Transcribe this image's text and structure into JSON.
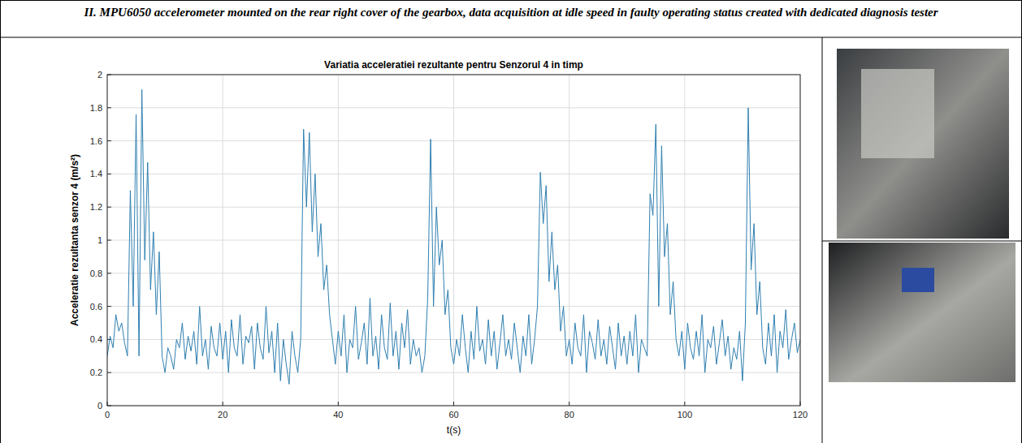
{
  "caption": "II. MPU6050 accelerometer mounted on the rear right cover of the gearbox, data acquisition at idle speed in faulty operating status created with dedicated diagnosis tester",
  "chart_data": {
    "type": "line",
    "title": "Variatia acceleratiei rezultante pentru Senzorul 4 in timp",
    "x_label": "t(s)",
    "y_label": "Acceleratie rezultanta senzor 4 (m/s²)",
    "color": "#2f7fb0",
    "grid": true,
    "xlim": [
      0,
      120
    ],
    "xticks": [
      0,
      20,
      40,
      60,
      80,
      100,
      120
    ],
    "ylim": [
      0,
      2
    ],
    "yticks": [
      0,
      0.2,
      0.4,
      0.6,
      0.8,
      1,
      1.2,
      1.4,
      1.6,
      1.8,
      2
    ],
    "x": [
      0,
      0.5,
      1,
      1.5,
      2,
      2.5,
      3,
      3.5,
      4,
      4.5,
      5,
      5.5,
      6,
      6.5,
      7,
      7.5,
      8,
      8.5,
      9,
      9.5,
      10,
      10.5,
      11,
      11.5,
      12,
      12.5,
      13,
      13.5,
      14,
      14.5,
      15,
      15.5,
      16,
      16.5,
      17,
      17.5,
      18,
      18.5,
      19,
      19.5,
      20,
      20.5,
      21,
      21.5,
      22,
      22.5,
      23,
      23.5,
      24,
      24.5,
      25,
      25.5,
      26,
      26.5,
      27,
      27.5,
      28,
      28.5,
      29,
      29.5,
      30,
      30.5,
      31,
      31.5,
      32,
      32.5,
      33,
      33.5,
      34,
      34.5,
      35,
      35.5,
      36,
      36.5,
      37,
      37.5,
      38,
      38.5,
      39,
      39.5,
      40,
      40.5,
      41,
      41.5,
      42,
      42.5,
      43,
      43.5,
      44,
      44.5,
      45,
      45.5,
      46,
      46.5,
      47,
      47.5,
      48,
      48.5,
      49,
      49.5,
      50,
      50.5,
      51,
      51.5,
      52,
      52.5,
      53,
      53.5,
      54,
      54.5,
      55,
      55.5,
      56,
      56.5,
      57,
      57.5,
      58,
      58.5,
      59,
      59.5,
      60,
      60.5,
      61,
      61.5,
      62,
      62.5,
      63,
      63.5,
      64,
      64.5,
      65,
      65.5,
      66,
      66.5,
      67,
      67.5,
      68,
      68.5,
      69,
      69.5,
      70,
      70.5,
      71,
      71.5,
      72,
      72.5,
      73,
      73.5,
      74,
      74.5,
      75,
      75.5,
      76,
      76.5,
      77,
      77.5,
      78,
      78.5,
      79,
      79.5,
      80,
      80.5,
      81,
      81.5,
      82,
      82.5,
      83,
      83.5,
      84,
      84.5,
      85,
      85.5,
      86,
      86.5,
      87,
      87.5,
      88,
      88.5,
      89,
      89.5,
      90,
      90.5,
      91,
      91.5,
      92,
      92.5,
      93,
      93.5,
      94,
      94.5,
      95,
      95.5,
      96,
      96.5,
      97,
      97.5,
      98,
      98.5,
      99,
      99.5,
      100,
      100.5,
      101,
      101.5,
      102,
      102.5,
      103,
      103.5,
      104,
      104.5,
      105,
      105.5,
      106,
      106.5,
      107,
      107.5,
      108,
      108.5,
      109,
      109.5,
      110,
      110.5,
      111,
      111.5,
      112,
      112.5,
      113,
      113.5,
      114,
      114.5,
      115,
      115.5,
      116,
      116.5,
      117,
      117.5,
      118,
      118.5,
      119,
      119.5,
      120
    ],
    "values": [
      0.3,
      0.42,
      0.35,
      0.55,
      0.45,
      0.5,
      0.38,
      0.3,
      1.3,
      0.6,
      1.76,
      0.3,
      1.91,
      0.88,
      1.47,
      0.7,
      1.05,
      0.55,
      0.93,
      0.3,
      0.2,
      0.35,
      0.3,
      0.22,
      0.4,
      0.35,
      0.5,
      0.28,
      0.42,
      0.33,
      0.45,
      0.25,
      0.6,
      0.3,
      0.4,
      0.22,
      0.48,
      0.35,
      0.3,
      0.5,
      0.28,
      0.45,
      0.2,
      0.52,
      0.35,
      0.3,
      0.55,
      0.25,
      0.42,
      0.38,
      0.48,
      0.22,
      0.5,
      0.35,
      0.28,
      0.6,
      0.32,
      0.45,
      0.2,
      0.5,
      0.15,
      0.4,
      0.25,
      0.13,
      0.45,
      0.3,
      0.2,
      0.4,
      1.67,
      1.2,
      1.65,
      1.05,
      1.4,
      0.9,
      1.1,
      0.7,
      0.85,
      0.55,
      0.4,
      0.25,
      0.45,
      0.3,
      0.55,
      0.2,
      0.4,
      0.35,
      0.6,
      0.28,
      0.38,
      0.5,
      0.25,
      0.65,
      0.3,
      0.42,
      0.22,
      0.55,
      0.35,
      0.28,
      0.62,
      0.3,
      0.45,
      0.22,
      0.5,
      0.35,
      0.58,
      0.25,
      0.4,
      0.3,
      0.35,
      0.2,
      0.3,
      0.65,
      1.61,
      0.6,
      1.2,
      0.85,
      1.0,
      0.55,
      0.7,
      0.35,
      0.25,
      0.4,
      0.3,
      0.55,
      0.35,
      0.2,
      0.45,
      0.28,
      0.6,
      0.33,
      0.4,
      0.25,
      0.52,
      0.3,
      0.45,
      0.22,
      0.38,
      0.55,
      0.3,
      0.4,
      0.28,
      0.5,
      0.35,
      0.2,
      0.42,
      0.3,
      0.55,
      0.25,
      0.4,
      0.6,
      1.41,
      1.1,
      1.33,
      0.75,
      1.05,
      0.7,
      0.85,
      0.45,
      0.6,
      0.3,
      0.4,
      0.25,
      0.5,
      0.35,
      0.3,
      0.55,
      0.2,
      0.45,
      0.38,
      0.28,
      0.52,
      0.3,
      0.4,
      0.25,
      0.48,
      0.35,
      0.22,
      0.5,
      0.3,
      0.42,
      0.25,
      0.45,
      0.3,
      0.55,
      0.2,
      0.4,
      0.35,
      0.3,
      1.28,
      1.15,
      1.7,
      0.6,
      1.57,
      0.9,
      1.1,
      0.55,
      0.75,
      0.4,
      0.3,
      0.45,
      0.22,
      0.5,
      0.35,
      0.28,
      0.45,
      0.3,
      0.55,
      0.2,
      0.4,
      0.35,
      0.48,
      0.25,
      0.38,
      0.52,
      0.3,
      0.42,
      0.22,
      0.35,
      0.28,
      0.45,
      0.15,
      0.5,
      1.8,
      0.82,
      1.1,
      0.55,
      0.75,
      0.35,
      0.25,
      0.5,
      0.3,
      0.55,
      0.2,
      0.45,
      0.35,
      0.58,
      0.28,
      0.4,
      0.5,
      0.32,
      0.4
    ]
  }
}
